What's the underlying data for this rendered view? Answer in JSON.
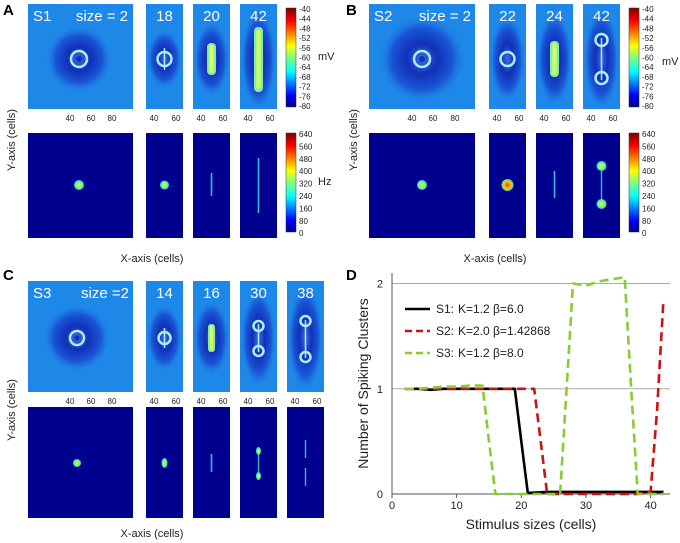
{
  "panels": {
    "A": {
      "letter": "A",
      "scenario": "S1",
      "size_prefix": "size = 2",
      "sizes": [
        "18",
        "20",
        "42"
      ],
      "mv_unit": "mV",
      "hz_unit": "Hz",
      "xaxis": "X-axis (cells)",
      "yaxis": "Y-axis (cells)",
      "big_ticks": [
        "40",
        "60",
        "80"
      ],
      "small_ticks": [
        "40",
        "60"
      ],
      "mv_ticks": [
        "-40",
        "-44",
        "-48",
        "-52",
        "-56",
        "-60",
        "-64",
        "-68",
        "-72",
        "-76",
        "-80"
      ],
      "hz_ticks": [
        "640",
        "560",
        "480",
        "400",
        "320",
        "240",
        "160",
        "80",
        "0"
      ]
    },
    "B": {
      "letter": "B",
      "scenario": "S2",
      "size_prefix": "size = 2",
      "sizes": [
        "22",
        "24",
        "42"
      ],
      "mv_unit": "mV",
      "hz_unit": "Hz",
      "xaxis": "X-axis (cells)",
      "yaxis": "Y-axis (cells)",
      "big_ticks": [
        "40",
        "60",
        "80"
      ],
      "small_ticks": [
        "40",
        "60"
      ],
      "mv_ticks": [
        "-40",
        "-44",
        "-48",
        "-52",
        "-56",
        "-60",
        "-64",
        "-68",
        "-72",
        "-76",
        "-80"
      ],
      "hz_ticks": [
        "640",
        "560",
        "480",
        "400",
        "320",
        "240",
        "160",
        "80",
        "0"
      ]
    },
    "C": {
      "letter": "C",
      "scenario": "S3",
      "size_prefix": "size =2",
      "sizes": [
        "14",
        "16",
        "30",
        "38"
      ],
      "xaxis": "X-axis (cells)",
      "yaxis": "Y-axis (cells)",
      "big_ticks": [
        "40",
        "60",
        "80"
      ],
      "small_ticks": [
        "40",
        "60"
      ]
    },
    "D": {
      "letter": "D"
    }
  },
  "colors": {
    "bg_blue": "#1e88e8",
    "dark_blue": "#00008f",
    "s1": "#000000",
    "s2": "#cc1111",
    "s3": "#88cc33",
    "grid": "#aaaaaa"
  },
  "chart_data": {
    "type": "line",
    "xlabel": "Stimulus sizes (cells)",
    "ylabel": "Number of Spiking Clusters",
    "xlim": [
      0,
      43
    ],
    "ylim": [
      0,
      2.1
    ],
    "xticks": [
      0,
      10,
      20,
      30,
      40
    ],
    "yticks": [
      0,
      1,
      2
    ],
    "grid": true,
    "legend_position": "top-left",
    "series": [
      {
        "name": "S1:",
        "params": "K=1.2 β=6.0",
        "style": "solid",
        "color": "#000000",
        "x": [
          2,
          4,
          6,
          8,
          10,
          12,
          14,
          16,
          18,
          19,
          20,
          21,
          24,
          28,
          32,
          36,
          40,
          42
        ],
        "y": [
          1.0,
          1.0,
          0.99,
          1.0,
          1.0,
          1.0,
          1.0,
          1.0,
          1.0,
          1.0,
          0.5,
          0.01,
          0.02,
          0.02,
          0.02,
          0.02,
          0.02,
          0.02
        ]
      },
      {
        "name": "S2:",
        "params": "K=2.0 β=1.42868",
        "style": "dashed",
        "color": "#cc1111",
        "x": [
          2,
          4,
          6,
          8,
          10,
          12,
          14,
          16,
          18,
          20,
          22,
          23,
          24,
          28,
          32,
          36,
          38,
          40,
          41,
          42
        ],
        "y": [
          1.0,
          1.0,
          1.0,
          1.0,
          1.0,
          1.0,
          1.0,
          1.0,
          1.0,
          1.0,
          1.0,
          0.5,
          0.0,
          0.0,
          0.0,
          0.0,
          0.0,
          0.02,
          0.8,
          1.85
        ]
      },
      {
        "name": "S3:",
        "params": "K=1.2 β=8.0",
        "style": "dashed",
        "color": "#88cc33",
        "x": [
          2,
          4,
          6,
          8,
          10,
          12,
          14,
          15,
          16,
          20,
          24,
          26,
          27,
          28,
          30,
          32,
          34,
          36,
          37,
          38,
          40,
          42
        ],
        "y": [
          1.0,
          1.0,
          1.01,
          1.02,
          1.02,
          1.03,
          1.03,
          0.5,
          0.0,
          0.0,
          0.0,
          0.0,
          1.0,
          2.0,
          1.98,
          2.02,
          2.04,
          2.06,
          1.0,
          0.0,
          0.0,
          0.0
        ]
      }
    ]
  }
}
